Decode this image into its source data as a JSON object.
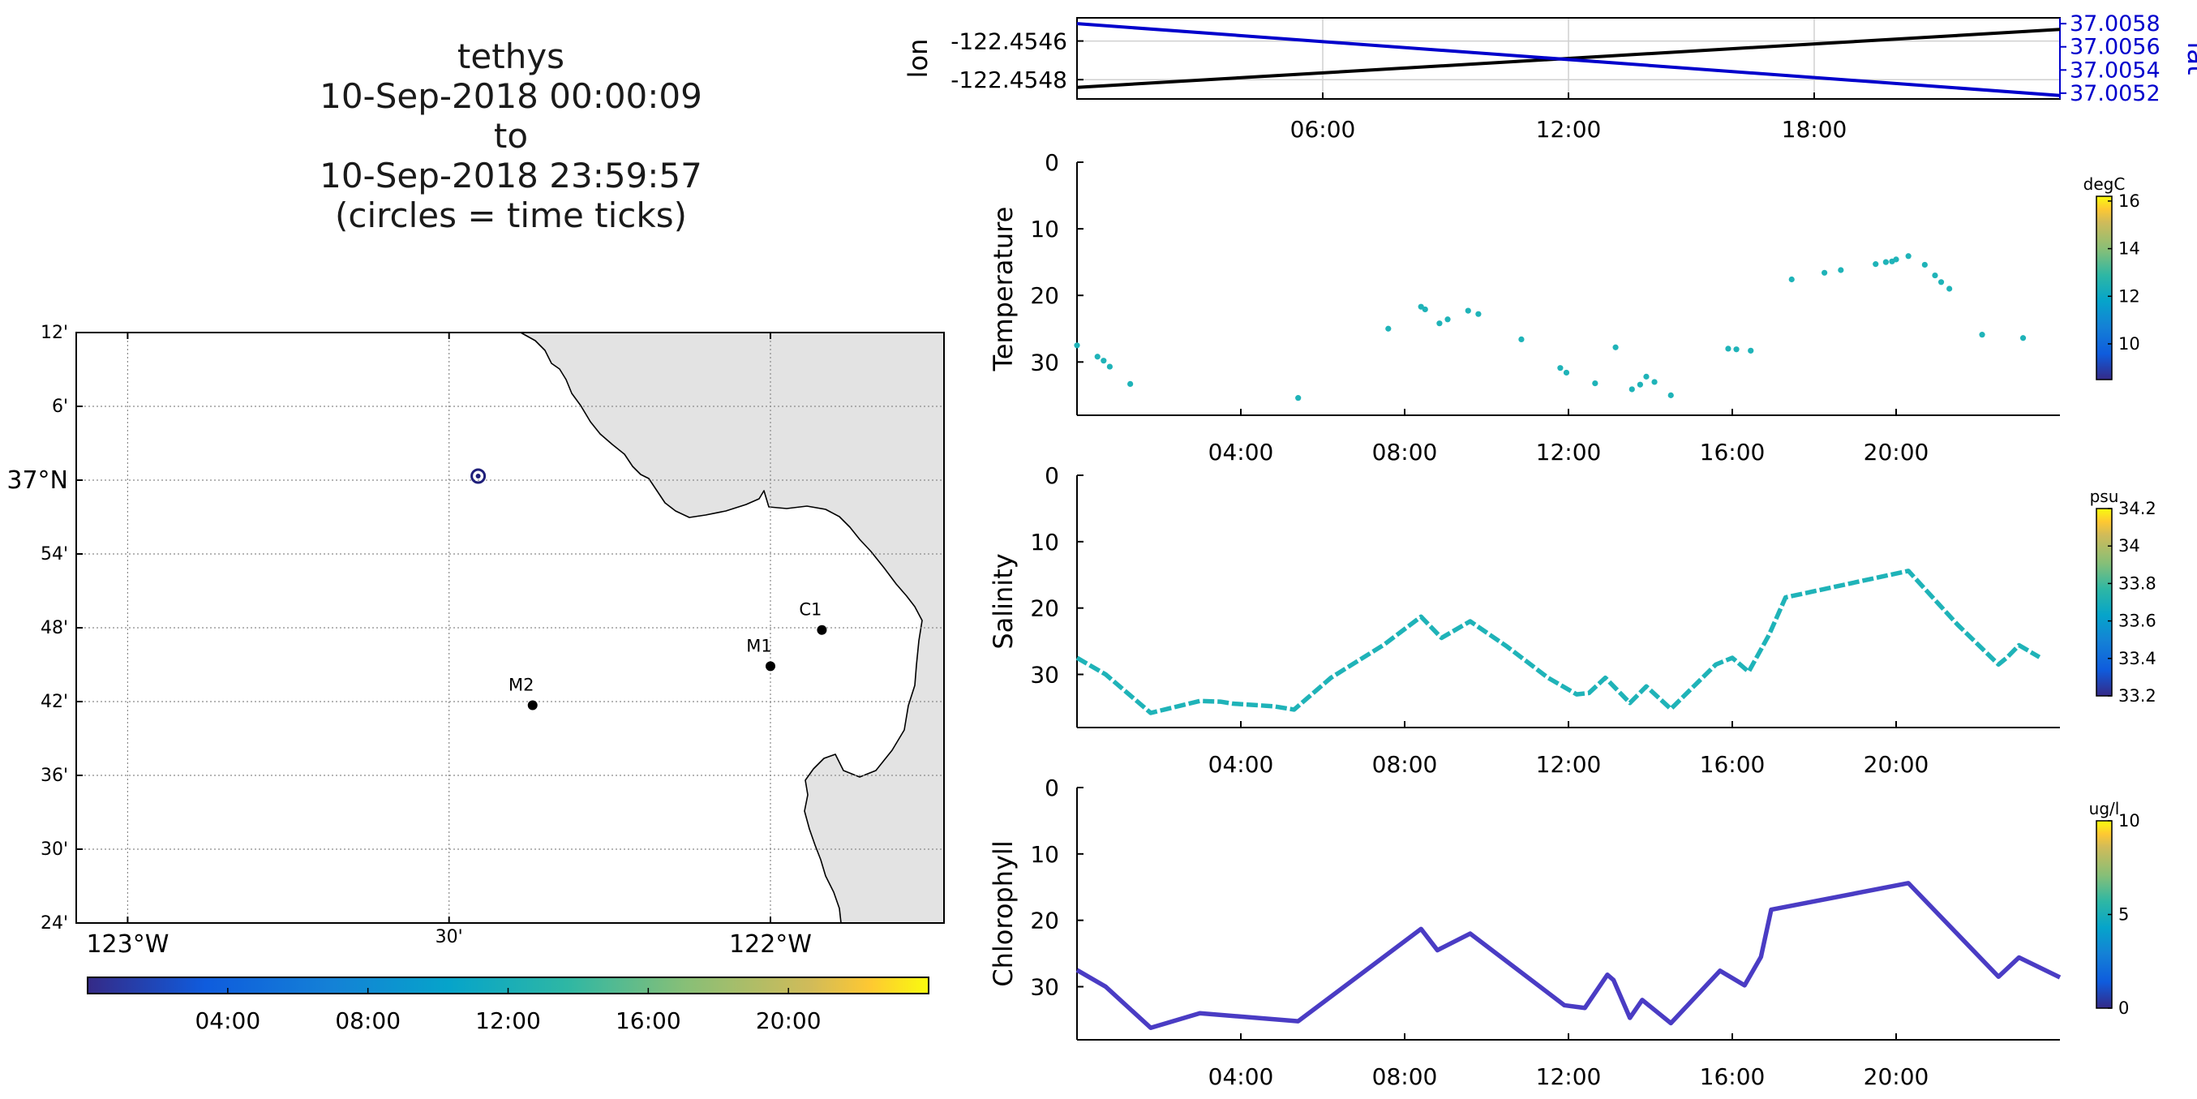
{
  "title_lines": [
    "tethys",
    "10-Sep-2018 00:00:09",
    "to",
    "10-Sep-2018 23:59:57",
    "(circles = time ticks)"
  ],
  "chart_data": [
    {
      "type": "map",
      "lat_ticks": [
        "12'",
        "6'",
        "37°N",
        "54'",
        "48'",
        "42'",
        "36'",
        "30'",
        "24'"
      ],
      "lon_ticks": [
        "123°W",
        "30'",
        "122°W"
      ],
      "lon_range": [
        -123.08,
        -121.73
      ],
      "lat_range": [
        36.4,
        37.2
      ],
      "grid": true,
      "vehicle_position": {
        "lon": -122.4547,
        "lat": 37.0055
      },
      "moorings": [
        {
          "name": "C1",
          "lon": -121.92,
          "lat": 36.797
        },
        {
          "name": "M1",
          "lon": -122.0,
          "lat": 36.748
        },
        {
          "name": "M2",
          "lon": -122.37,
          "lat": 36.695
        }
      ],
      "colorbar": {
        "ticks": [
          "04:00",
          "08:00",
          "12:00",
          "16:00",
          "20:00"
        ],
        "tick_hours": [
          4,
          8,
          12,
          16,
          20
        ],
        "range_hours": [
          0,
          24
        ]
      }
    },
    {
      "type": "line",
      "ylabel_left": "lon",
      "ylabel_right": "lat",
      "x_ticks": [
        "06:00",
        "12:00",
        "18:00"
      ],
      "x_tick_hours": [
        6,
        12,
        18
      ],
      "xlim_hours": [
        0,
        24
      ],
      "ylim_left": [
        -122.4549,
        -122.45448
      ],
      "yticks_left": [
        -122.4546,
        -122.4548
      ],
      "ylim_right": [
        37.00515,
        37.00585
      ],
      "yticks_right": [
        37.0058,
        37.0056,
        37.0054,
        37.0052
      ],
      "series": [
        {
          "name": "lon",
          "axis": "left",
          "color": "#000000",
          "x_hours": [
            0,
            24
          ],
          "values": [
            -122.45484,
            -122.45454
          ]
        },
        {
          "name": "lat",
          "axis": "right",
          "color": "#0000cc",
          "x_hours": [
            0,
            24
          ],
          "values": [
            37.0058,
            37.00518
          ]
        }
      ],
      "grid": true
    },
    {
      "type": "scatter",
      "ylabel": "Temperature",
      "colorbar_unit": "degC",
      "colorbar_ticks": [
        "10",
        "12",
        "14",
        "16"
      ],
      "colorbar_tick_values": [
        10,
        12,
        14,
        16
      ],
      "colorbar_range": [
        8.5,
        16.2
      ],
      "x_ticks": [
        "04:00",
        "08:00",
        "12:00",
        "16:00",
        "20:00"
      ],
      "x_tick_hours": [
        4,
        8,
        12,
        16,
        20
      ],
      "xlim_hours": [
        0,
        24
      ],
      "yticks": [
        0,
        10,
        20,
        30
      ],
      "ylim_reversed": [
        0,
        38
      ],
      "color": "#1fb3b8",
      "x_hours": [
        0.0,
        0.5,
        0.65,
        0.8,
        1.3,
        5.4,
        7.6,
        8.4,
        8.5,
        8.85,
        9.05,
        9.55,
        9.8,
        10.85,
        11.8,
        11.95,
        12.65,
        13.15,
        13.55,
        13.75,
        13.9,
        14.1,
        14.5,
        15.9,
        16.1,
        16.45,
        17.45,
        18.25,
        18.65,
        19.5,
        19.75,
        19.9,
        20.0,
        20.3,
        20.7,
        20.95,
        21.1,
        21.3,
        22.1,
        23.1
      ],
      "values": [
        27.5,
        29.2,
        29.8,
        30.7,
        33.3,
        35.4,
        25.0,
        21.7,
        22.1,
        24.2,
        23.6,
        22.3,
        22.8,
        26.6,
        30.9,
        31.6,
        33.2,
        27.8,
        34.1,
        33.4,
        32.2,
        33.0,
        35.0,
        28.0,
        28.1,
        28.3,
        17.6,
        16.6,
        16.2,
        15.3,
        15.0,
        14.9,
        14.6,
        14.1,
        15.4,
        17.0,
        18.0,
        19.0,
        25.9,
        26.4
      ]
    },
    {
      "type": "line",
      "ylabel": "Salinity",
      "colorbar_unit": "psu",
      "colorbar_ticks": [
        "33.2",
        "33.4",
        "33.6",
        "33.8",
        "34",
        "34.2"
      ],
      "colorbar_tick_values": [
        33.2,
        33.4,
        33.6,
        33.8,
        34.0,
        34.2
      ],
      "colorbar_range": [
        33.2,
        34.2
      ],
      "x_ticks": [
        "04:00",
        "08:00",
        "12:00",
        "16:00",
        "20:00"
      ],
      "x_tick_hours": [
        4,
        8,
        12,
        16,
        20
      ],
      "xlim_hours": [
        0,
        24
      ],
      "yticks": [
        0,
        10,
        20,
        30
      ],
      "ylim_reversed": [
        0,
        38
      ],
      "color": "#1fb3b8",
      "x_hours": [
        0.0,
        0.7,
        1.8,
        2.2,
        3.0,
        3.5,
        3.8,
        4.8,
        5.3,
        6.2,
        7.5,
        8.4,
        8.9,
        9.6,
        10.5,
        11.5,
        12.2,
        12.5,
        12.9,
        13.5,
        13.9,
        14.5,
        15.6,
        16.0,
        16.4,
        16.9,
        17.3,
        20.3,
        21.5,
        22.5,
        22.7,
        23.0,
        23.5
      ],
      "values": [
        27.5,
        30.0,
        35.8,
        35.2,
        34.0,
        34.1,
        34.4,
        34.8,
        35.3,
        30.5,
        25.5,
        21.3,
        24.5,
        22.0,
        25.8,
        30.5,
        33.0,
        32.8,
        30.5,
        34.3,
        31.8,
        35.2,
        28.5,
        27.5,
        29.6,
        24.0,
        18.4,
        14.4,
        22.5,
        28.5,
        27.5,
        25.6,
        27.4
      ]
    },
    {
      "type": "line",
      "ylabel": "Chlorophyll",
      "colorbar_unit": "ug/l",
      "colorbar_ticks": [
        "0",
        "5",
        "10"
      ],
      "colorbar_tick_values": [
        0,
        5,
        10
      ],
      "colorbar_range": [
        0,
        10
      ],
      "x_ticks": [
        "04:00",
        "08:00",
        "12:00",
        "16:00",
        "20:00"
      ],
      "x_tick_hours": [
        4,
        8,
        12,
        16,
        20
      ],
      "xlim_hours": [
        0,
        24
      ],
      "yticks": [
        0,
        10,
        20,
        30
      ],
      "ylim_reversed": [
        0,
        38
      ],
      "color": "#4a3cc4",
      "x_hours": [
        0.0,
        0.7,
        1.8,
        3.0,
        5.4,
        8.4,
        8.8,
        9.6,
        11.9,
        12.4,
        12.95,
        13.1,
        13.5,
        13.8,
        14.5,
        15.7,
        16.3,
        16.7,
        16.95,
        20.3,
        22.5,
        23.0,
        24.0
      ],
      "values": [
        27.5,
        30.0,
        36.2,
        34.0,
        35.2,
        21.3,
        24.5,
        22.0,
        32.8,
        33.2,
        28.2,
        29.0,
        34.7,
        32.0,
        35.5,
        27.6,
        29.8,
        25.5,
        18.4,
        14.4,
        28.5,
        25.6,
        28.6
      ]
    }
  ]
}
